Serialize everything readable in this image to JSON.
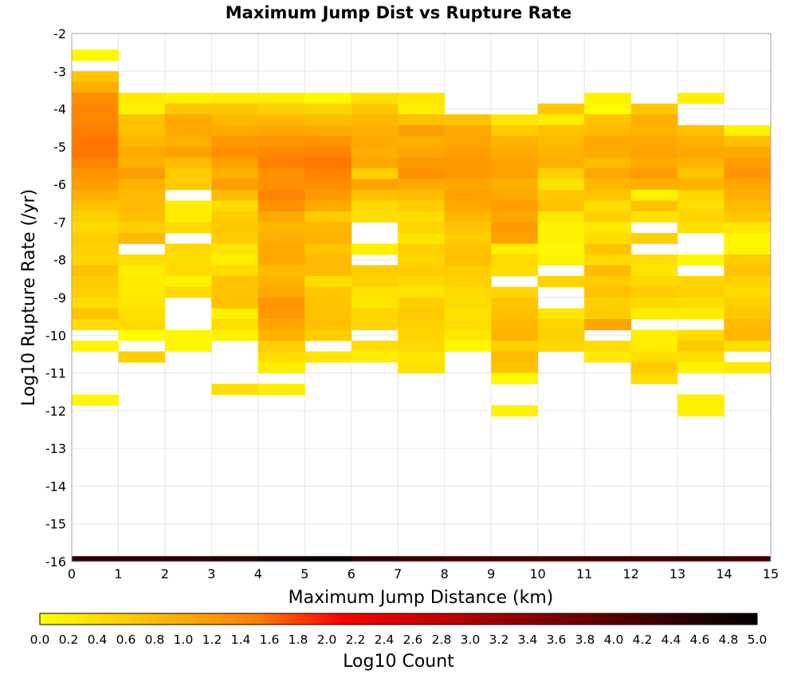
{
  "chart_data": {
    "type": "heatmap",
    "title": "Maximum Jump Dist vs Rupture Rate",
    "xlabel": "Maximum Jump Distance (km)",
    "ylabel": "Log10 Rupture Rate (/yr)",
    "xlim": [
      0,
      15
    ],
    "ylim": [
      -16,
      -2
    ],
    "x_ticks": [
      "0",
      "1",
      "2",
      "3",
      "4",
      "5",
      "6",
      "7",
      "8",
      "9",
      "10",
      "11",
      "12",
      "13",
      "14",
      "15"
    ],
    "y_ticks": [
      "-2",
      "-3",
      "-4",
      "-5",
      "-6",
      "-7",
      "-8",
      "-9",
      "-10",
      "-11",
      "-12",
      "-13",
      "-14",
      "-15",
      "-16"
    ],
    "grid": true,
    "colorbar": {
      "label": "Log10 Count",
      "range": [
        0,
        5
      ],
      "ticks": [
        "0.0",
        "0.2",
        "0.4",
        "0.6",
        "0.8",
        "1.0",
        "1.2",
        "1.4",
        "1.6",
        "1.8",
        "2.0",
        "2.2",
        "2.4",
        "2.6",
        "2.8",
        "3.0",
        "3.2",
        "3.4",
        "3.6",
        "3.8",
        "4.0",
        "4.2",
        "4.4",
        "4.6",
        "4.8",
        "5.0"
      ],
      "colors": [
        "#ffff00",
        "#ff8000",
        "#ff0000",
        "#000000"
      ]
    },
    "cell_height_log10": 0.2857,
    "columns": [
      {
        "x0": 0,
        "x1": 1,
        "y_top": -2.429,
        "values": [
          0.1,
          null,
          0.7,
          0.95,
          1.35,
          1.45,
          1.45,
          1.5,
          1.55,
          1.55,
          1.45,
          1.25,
          1.15,
          0.95,
          0.75,
          0.55,
          0.45,
          0.6,
          0.55,
          0.5,
          0.75,
          0.6,
          0.55,
          0.4,
          0.7,
          0.4,
          null,
          0.1,
          null,
          null,
          null,
          null,
          0.1
        ]
      },
      {
        "x0": 1,
        "x1": 2,
        "y_top": -3.571,
        "values": [
          0.25,
          0.15,
          0.75,
          0.75,
          0.85,
          1.0,
          0.95,
          1.15,
          0.9,
          0.8,
          0.8,
          0.75,
          0.55,
          0.8,
          null,
          0.4,
          0.2,
          0.25,
          0.25,
          0.3,
          0.35,
          0.45,
          0.05,
          null,
          0.55
        ]
      },
      {
        "x0": 2,
        "x1": 3,
        "y_top": -3.571,
        "values": [
          0.15,
          0.65,
          1.0,
          1.05,
          0.95,
          1.1,
          0.8,
          0.6,
          0.6,
          null,
          0.2,
          0.2,
          0.45,
          null,
          0.45,
          0.4,
          0.45,
          0.15,
          0.45,
          null,
          null,
          null,
          0.1,
          0.1
        ]
      },
      {
        "x0": 3,
        "x1": 4,
        "y_top": -3.571,
        "values": [
          0.2,
          0.65,
          0.85,
          1.0,
          1.2,
          1.3,
          1.1,
          0.95,
          1.15,
          0.8,
          0.4,
          0.6,
          0.65,
          0.6,
          0.3,
          0.2,
          0.4,
          0.7,
          0.7,
          0.75,
          0.15,
          0.4,
          0.15,
          null,
          null,
          null,
          null,
          0.4
        ]
      },
      {
        "x0": 4,
        "x1": 5,
        "y_top": -3.571,
        "values": [
          0.2,
          0.55,
          0.85,
          1.05,
          1.25,
          1.4,
          1.5,
          1.3,
          1.3,
          1.45,
          1.3,
          1.0,
          0.85,
          0.95,
          1.05,
          1.0,
          0.8,
          0.9,
          1.0,
          1.25,
          1.2,
          1.05,
          0.9,
          0.6,
          0.4,
          0.2,
          null,
          0.2
        ]
      },
      {
        "x0": 5,
        "x1": 6,
        "y_top": -3.571,
        "values": [
          0.1,
          0.5,
          0.8,
          1.0,
          1.25,
          1.45,
          1.55,
          1.45,
          1.35,
          1.2,
          1.0,
          0.6,
          0.85,
          0.9,
          0.7,
          0.8,
          0.8,
          0.4,
          0.65,
          0.7,
          0.7,
          0.75,
          0.6,
          null,
          0.3
        ]
      },
      {
        "x0": 6,
        "x1": 7,
        "y_top": -3.571,
        "values": [
          0.35,
          0.65,
          0.85,
          0.95,
          1.0,
          0.95,
          1.05,
          0.55,
          1.1,
          0.75,
          0.45,
          0.4,
          null,
          null,
          0.2,
          null,
          0.6,
          0.55,
          0.35,
          0.3,
          0.5,
          0.5,
          null,
          0.4,
          0.2
        ]
      },
      {
        "x0": 7,
        "x1": 8,
        "y_top": -3.571,
        "values": [
          0.3,
          0.2,
          0.75,
          1.15,
          0.95,
          1.05,
          1.2,
          1.3,
          1.0,
          0.8,
          0.6,
          0.4,
          0.5,
          0.3,
          0.55,
          0.5,
          0.6,
          0.45,
          0.3,
          0.55,
          0.65,
          0.55,
          0.5,
          0.45,
          0.3,
          0.35
        ]
      },
      {
        "x0": 8,
        "x1": 9,
        "y_top": -4.143,
        "values": [
          0.7,
          1.0,
          1.05,
          1.15,
          1.2,
          1.2,
          1.05,
          1.1,
          1.0,
          0.85,
          0.7,
          0.6,
          0.7,
          0.75,
          0.6,
          0.55,
          0.45,
          0.4,
          0.35,
          0.4,
          0.3,
          0.1
        ]
      },
      {
        "x0": 9,
        "x1": 10,
        "y_top": -4.143,
        "values": [
          0.3,
          0.6,
          0.9,
          1.0,
          1.1,
          1.1,
          0.95,
          1.0,
          1.15,
          1.05,
          1.2,
          1.1,
          0.2,
          0.45,
          0.4,
          null,
          0.5,
          0.7,
          0.75,
          0.85,
          0.9,
          0.55,
          0.8,
          0.7,
          0.1,
          null,
          null,
          0.15
        ]
      },
      {
        "x0": 10,
        "x1": 11,
        "y_top": -3.857,
        "values": [
          0.65,
          0.2,
          0.75,
          0.8,
          0.9,
          0.95,
          0.55,
          0.35,
          0.65,
          0.7,
          0.3,
          0.15,
          0.15,
          0.1,
          0.15,
          null,
          0.5,
          null,
          null,
          0.3,
          0.5,
          0.55,
          0.45
        ]
      },
      {
        "x0": 11,
        "x1": 12,
        "y_top": -3.571,
        "values": [
          0.15,
          0.05,
          0.7,
          0.8,
          1.05,
          1.0,
          0.8,
          1.05,
          0.85,
          0.7,
          0.4,
          0.55,
          0.25,
          0.4,
          0.7,
          0.45,
          0.8,
          0.6,
          0.7,
          0.55,
          0.6,
          1.05,
          null,
          0.4,
          0.25
        ]
      },
      {
        "x0": 12,
        "x1": 13,
        "y_top": -3.857,
        "values": [
          0.65,
          0.95,
          0.9,
          1.0,
          1.1,
          1.0,
          1.15,
          0.95,
          0.15,
          0.75,
          0.35,
          null,
          0.55,
          null,
          0.4,
          0.3,
          0.45,
          0.6,
          0.45,
          0.2,
          null,
          0.2,
          0.2,
          0.4,
          0.6,
          0.4
        ]
      },
      {
        "x0": 13,
        "x1": 14,
        "y_top": -3.571,
        "values": [
          0.15,
          null,
          null,
          0.75,
          0.95,
          1.05,
          0.9,
          0.7,
          0.9,
          0.5,
          0.4,
          0.5,
          0.35,
          null,
          null,
          0.1,
          null,
          0.5,
          0.55,
          0.4,
          0.2,
          null,
          0.4,
          0.65,
          0.4,
          0.15,
          null,
          null,
          0.15,
          0.15
        ]
      },
      {
        "x0": 14,
        "x1": 15,
        "y_top": -4.429,
        "values": [
          0.15,
          0.75,
          1.0,
          1.15,
          1.25,
          1.05,
          0.95,
          0.8,
          0.65,
          0.3,
          0.1,
          0.1,
          0.6,
          0.7,
          0.55,
          0.45,
          0.55,
          0.65,
          0.8,
          0.85,
          0.35,
          null,
          0.25
        ]
      }
    ],
    "bottom_row": {
      "y0": -16,
      "y1": -15.857,
      "values": [
        4.5,
        4.5,
        4.5,
        4.6,
        4.8,
        4.9,
        4.5,
        4.4,
        4.3,
        4.3,
        4.2,
        4.3,
        4.3,
        4.4,
        4.3
      ]
    }
  }
}
